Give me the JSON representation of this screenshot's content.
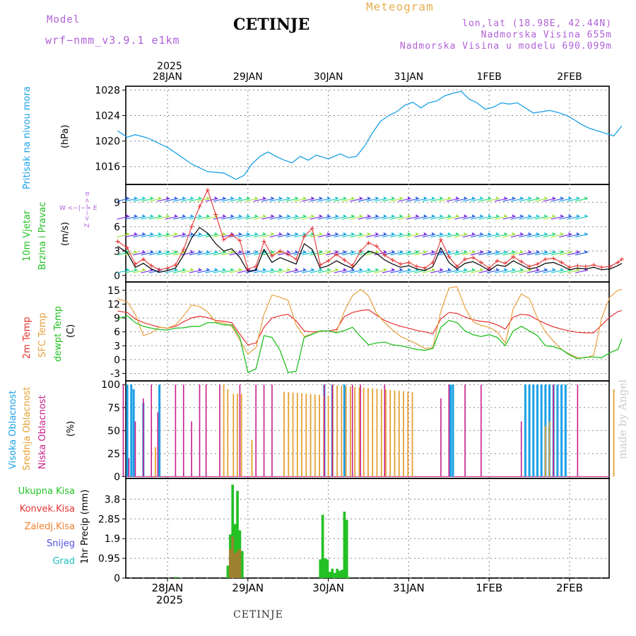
{
  "header": {
    "model_label": "Model",
    "model_version": "wrf−nmm_v3.9.1  e1km",
    "title": "CETINJE",
    "meteogram": "Meteogram",
    "lonlat": "lon,lat (18.98E, 42.44N)",
    "elevation": "Nadmorska Visina 655m",
    "model_elevation": "Nadmorska Visina u modelu 690.099m"
  },
  "footer": {
    "station": "CETINJE"
  },
  "watermark": "made by Angel",
  "time_axis": {
    "year": "2025",
    "day_labels": [
      "28JAN",
      "29JAN",
      "30JAN",
      "31JAN",
      "1FEB",
      "2FEB"
    ]
  },
  "colors": {
    "pressure": "#1aa0e6",
    "wind_speed": "#000000",
    "wind_gust": "#e63232",
    "temp2m": "#e63232",
    "sfc_temp": "#e6a040",
    "dewpt": "#22c022",
    "high_cloud": "#1aa0e6",
    "mid_cloud": "#e6a030",
    "low_cloud": "#c81e8c",
    "precip_total": "#22c022",
    "precip_conv": "#e63232",
    "precip_frozen": "#f08030",
    "snow": "#5050e0",
    "graupel": "#20c0c0"
  },
  "chart_data": [
    {
      "type": "line",
      "id": "pressure",
      "ylabel": "(hPa)",
      "series_label": "Pritisak na nivou mora",
      "yticks": [
        1016,
        1020,
        1024,
        1028
      ],
      "ylim": [
        1013.2,
        1028.6
      ],
      "x_days": [
        -0.62,
        -0.5,
        -0.4,
        -0.25,
        -0.1,
        0.0,
        0.12,
        0.3,
        0.5,
        0.7,
        0.85,
        0.95,
        1.05,
        1.15,
        1.25,
        1.35,
        1.45,
        1.55,
        1.65,
        1.75,
        1.85,
        2.0,
        2.15,
        2.25,
        2.35,
        2.45,
        2.55,
        2.65,
        2.75,
        2.85,
        2.95,
        3.05,
        3.15,
        3.25,
        3.35,
        3.45,
        3.55,
        3.65,
        3.75,
        3.85,
        3.95,
        4.05,
        4.15,
        4.25,
        4.35,
        4.45,
        4.55,
        4.65,
        4.75,
        4.85,
        4.95,
        5.05,
        5.15,
        5.25,
        5.35,
        5.45,
        5.55,
        5.65
      ],
      "values": [
        1021.6,
        1020.6,
        1021.0,
        1020.5,
        1019.6,
        1019.0,
        1018.0,
        1016.4,
        1015.2,
        1015.0,
        1014.0,
        1014.6,
        1016.4,
        1017.6,
        1018.3,
        1017.6,
        1017.0,
        1016.6,
        1017.6,
        1017.0,
        1017.8,
        1017.2,
        1018.0,
        1017.4,
        1017.6,
        1019.2,
        1021.3,
        1023.1,
        1024.0,
        1024.6,
        1025.6,
        1026.1,
        1025.2,
        1026.0,
        1026.3,
        1027.1,
        1027.5,
        1027.8,
        1026.6,
        1026.0,
        1025.0,
        1025.3,
        1026.0,
        1025.8,
        1026.0,
        1025.2,
        1024.4,
        1024.6,
        1024.8,
        1024.5,
        1024.1,
        1023.4,
        1022.6,
        1022.0,
        1021.6,
        1021.2,
        1020.8,
        1022.4
      ]
    },
    {
      "type": "line",
      "id": "wind",
      "ylabel": "(m/s)",
      "series_labels": [
        "10m Vjetar",
        "Brzina i Pravac"
      ],
      "compass": "W <−|−> E",
      "compass_v": "Z <− −> α",
      "yticks": [
        0,
        3,
        6,
        9
      ],
      "ylim": [
        -0.8,
        11.2
      ],
      "x_days": [
        -0.62,
        -0.5,
        -0.4,
        -0.3,
        -0.2,
        -0.1,
        0.0,
        0.1,
        0.2,
        0.3,
        0.4,
        0.5,
        0.6,
        0.7,
        0.8,
        0.9,
        1.0,
        1.1,
        1.2,
        1.3,
        1.4,
        1.5,
        1.6,
        1.7,
        1.8,
        1.9,
        2.0,
        2.1,
        2.2,
        2.3,
        2.4,
        2.5,
        2.6,
        2.7,
        2.8,
        2.9,
        3.0,
        3.1,
        3.2,
        3.3,
        3.4,
        3.5,
        3.6,
        3.7,
        3.8,
        3.9,
        4.0,
        4.1,
        4.2,
        4.3,
        4.4,
        4.5,
        4.6,
        4.7,
        4.8,
        4.9,
        5.0,
        5.1,
        5.2,
        5.3,
        5.4,
        5.5,
        5.6,
        5.65
      ],
      "speed": [
        3.6,
        2.8,
        1.0,
        1.5,
        0.8,
        0.4,
        0.6,
        0.9,
        2.5,
        4.6,
        5.9,
        5.2,
        3.9,
        3.0,
        3.3,
        2.2,
        0.5,
        0.7,
        3.2,
        1.6,
        2.2,
        1.8,
        1.4,
        3.9,
        3.2,
        0.9,
        1.2,
        1.8,
        1.3,
        0.9,
        2.1,
        3.0,
        2.7,
        1.9,
        1.4,
        1.0,
        1.2,
        0.8,
        0.6,
        1.1,
        3.4,
        1.6,
        0.8,
        1.5,
        1.7,
        1.2,
        0.6,
        1.3,
        1.1,
        1.8,
        1.3,
        0.8,
        1.0,
        1.5,
        1.6,
        1.2,
        0.7,
        0.9,
        0.8,
        1.0,
        0.7,
        0.8,
        1.2,
        1.5
      ],
      "gust": [
        4.2,
        3.4,
        1.4,
        2.0,
        1.2,
        0.7,
        0.9,
        1.3,
        3.2,
        6.0,
        8.5,
        10.5,
        7.5,
        4.4,
        5.0,
        4.3,
        0.8,
        1.1,
        4.2,
        2.4,
        3.0,
        2.6,
        2.0,
        4.8,
        5.8,
        1.3,
        1.8,
        2.6,
        1.9,
        1.2,
        3.0,
        4.0,
        3.6,
        2.5,
        1.9,
        1.4,
        1.6,
        1.1,
        0.9,
        1.6,
        4.4,
        2.3,
        1.1,
        2.0,
        2.2,
        1.6,
        0.9,
        1.8,
        1.5,
        2.3,
        1.7,
        1.1,
        1.4,
        2.0,
        2.1,
        1.6,
        1.0,
        1.2,
        1.1,
        1.3,
        1.0,
        1.1,
        1.6,
        2.0
      ]
    },
    {
      "type": "line",
      "id": "temperature",
      "ylabel": "(C)",
      "series_labels": [
        "2m Temp",
        "SFC Temp",
        "dewpt Temp"
      ],
      "yticks": [
        -3,
        0,
        3,
        6,
        9,
        12,
        15
      ],
      "ylim": [
        -4.6,
        16.8
      ],
      "x_days": [
        -0.62,
        -0.5,
        -0.4,
        -0.3,
        -0.2,
        -0.1,
        0.0,
        0.1,
        0.2,
        0.3,
        0.4,
        0.5,
        0.6,
        0.7,
        0.8,
        0.9,
        1.0,
        1.1,
        1.2,
        1.3,
        1.4,
        1.5,
        1.6,
        1.7,
        1.8,
        1.9,
        2.0,
        2.1,
        2.2,
        2.3,
        2.4,
        2.5,
        2.6,
        2.7,
        2.8,
        2.9,
        3.0,
        3.1,
        3.2,
        3.3,
        3.4,
        3.5,
        3.6,
        3.7,
        3.8,
        3.9,
        4.0,
        4.1,
        4.2,
        4.3,
        4.4,
        4.5,
        4.6,
        4.7,
        4.8,
        4.9,
        5.0,
        5.1,
        5.2,
        5.3,
        5.4,
        5.5,
        5.6,
        5.65
      ],
      "t2m": [
        10.5,
        10.2,
        8.8,
        8.0,
        7.5,
        7.0,
        6.8,
        7.2,
        8.2,
        9.0,
        9.4,
        9.1,
        8.5,
        8.3,
        8.0,
        5.5,
        3.2,
        3.6,
        7.0,
        9.0,
        9.5,
        9.8,
        8.4,
        6.2,
        6.0,
        6.1,
        6.2,
        6.5,
        9.3,
        10.2,
        10.6,
        10.8,
        9.6,
        8.5,
        7.8,
        7.2,
        6.8,
        6.3,
        6.0,
        5.6,
        8.8,
        10.2,
        10.0,
        9.2,
        8.6,
        8.3,
        8.1,
        7.5,
        6.6,
        9.2,
        9.8,
        9.6,
        8.6,
        7.8,
        7.1,
        6.6,
        6.2,
        5.9,
        5.8,
        5.8,
        7.5,
        9.2,
        10.4,
        10.6
      ],
      "sfc": [
        13.2,
        12.5,
        9.8,
        5.2,
        5.8,
        7.0,
        6.8,
        7.5,
        9.5,
        11.8,
        11.5,
        10.3,
        8.2,
        7.9,
        7.2,
        4.2,
        1.2,
        2.6,
        9.8,
        14.0,
        13.5,
        12.8,
        7.5,
        5.0,
        5.6,
        6.1,
        6.2,
        6.0,
        10.5,
        13.8,
        15.2,
        13.8,
        10.0,
        8.0,
        6.4,
        5.0,
        4.2,
        3.4,
        2.4,
        2.6,
        10.5,
        15.5,
        15.8,
        11.2,
        8.2,
        7.4,
        7.0,
        6.0,
        3.6,
        11.0,
        14.2,
        13.2,
        9.0,
        6.0,
        4.0,
        2.2,
        1.2,
        0.4,
        0.4,
        1.0,
        9.0,
        13.5,
        15.0,
        15.2
      ],
      "dewpt": [
        8.8,
        9.5,
        8.0,
        7.2,
        6.8,
        6.5,
        6.4,
        6.8,
        6.9,
        7.2,
        7.2,
        8.0,
        8.0,
        7.5,
        7.5,
        4.8,
        -2.8,
        -2.0,
        5.2,
        4.8,
        2.0,
        -2.8,
        -2.5,
        4.8,
        5.5,
        6.2,
        6.2,
        5.8,
        6.3,
        7.0,
        5.0,
        3.2,
        3.6,
        3.8,
        3.2,
        3.0,
        2.6,
        2.2,
        2.0,
        2.4,
        7.0,
        8.5,
        8.0,
        6.2,
        5.4,
        5.0,
        5.4,
        4.8,
        3.0,
        6.2,
        7.2,
        6.2,
        5.2,
        3.0,
        2.8,
        2.2,
        1.0,
        0.2,
        0.5,
        0.6,
        0.4,
        1.5,
        2.2,
        4.5
      ]
    },
    {
      "type": "bar",
      "id": "clouds",
      "ylabel": "(%)",
      "series_labels": [
        "Visoka Oblacnost",
        "Srednja Oblacnost",
        "Niska Oblacnost"
      ],
      "yticks": [
        0,
        25,
        50,
        75,
        100
      ],
      "ylim": [
        -2,
        104
      ]
    },
    {
      "type": "bar",
      "id": "precip",
      "ylabel": "1hr Precip (mm)",
      "legend": [
        "Ukupna Kisa",
        "Konvek.Kisa",
        "Zaledj.Kisa",
        "Snijeg",
        "Grad"
      ],
      "yticks": [
        0,
        0.95,
        1.9,
        2.85,
        3.8
      ],
      "ylim": [
        0,
        4.8
      ],
      "x_days": [
        0.1,
        0.15,
        0.75,
        0.78,
        0.81,
        0.84,
        0.87,
        0.9,
        0.93,
        1.9,
        1.93,
        1.96,
        1.99,
        2.02,
        2.05,
        2.08,
        2.11,
        2.14,
        2.17,
        2.2,
        2.23,
        2.26
      ],
      "values": [
        0.05,
        0.03,
        0.6,
        2.1,
        4.5,
        2.6,
        4.2,
        2.3,
        1.3,
        0.9,
        3.05,
        0.95,
        0.9,
        0.3,
        0.45,
        0.25,
        0.45,
        0.35,
        0.4,
        3.2,
        2.8,
        0.05
      ],
      "convective": [
        0,
        0,
        0,
        1.4,
        2.0,
        1.2,
        1.3,
        1.4,
        0,
        0,
        0,
        0,
        0,
        0,
        0,
        0,
        0,
        0,
        0,
        0,
        0,
        0
      ]
    }
  ]
}
